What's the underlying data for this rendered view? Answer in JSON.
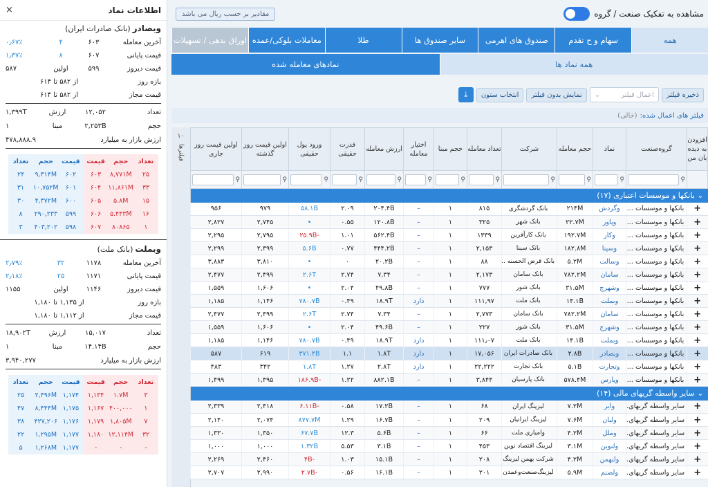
{
  "left_panel": {
    "title": "اطلاعات نماد",
    "close": "×",
    "symbols": [
      {
        "name": "وبصادر",
        "full": "(بانک صادرات ایران)",
        "rows": [
          {
            "label": "آخرین معامله",
            "v1": "۶۰۳",
            "v2": "۴",
            "v3": "۰٫۶۷٪"
          },
          {
            "label": "قیمت پایانی",
            "v1": "۶۰۷",
            "v2": "۸",
            "v3": "۱٫۳۷٪"
          },
          {
            "label": "قیمت دیروز",
            "v1": "۵۹۹",
            "v2": "اولین",
            "v3": "۵۸۷"
          }
        ],
        "ranges": [
          {
            "label": "بازه روز",
            "value": "از ۵۸۲ تا ۶۱۴"
          },
          {
            "label": "قیمت مجاز",
            "value": "از ۵۸۲ تا ۶۱۴"
          }
        ],
        "stats": [
          {
            "label": "تعداد",
            "v1": "۱۲,۰۵۲",
            "v2": "ارزش",
            "v3": "۱,۳۹۹T"
          },
          {
            "label": "حجم",
            "v1": "۲,۲۵۳B",
            "v2": "مبنا",
            "v3": "۱"
          }
        ],
        "mcap": {
          "label": "ارزش بازار به میلیارد",
          "value": "۴۷۸,۸۸۸.۹"
        },
        "orderbook": {
          "buy_headers": [
            "تعداد",
            "حجم",
            "قیمت"
          ],
          "sell_headers": [
            "قیمت",
            "حجم",
            "تعداد"
          ],
          "buy": [
            [
              "۲۴",
              "۹,۳۱۴M",
              "۶۰۲"
            ],
            [
              "۳۱",
              "۱۰,۷۵۲M",
              "۶۰۱"
            ],
            [
              "۳۰",
              "۴,۳۷۲M",
              "۶۰۰"
            ],
            [
              "۸",
              "۲۹۰,۲۳۳",
              "۵۹۹"
            ],
            [
              "۳",
              "۴۰۳,۲۰۲",
              "۵۹۸"
            ]
          ],
          "sell": [
            [
              "۶۰۳",
              "۸,۷۷۱M",
              "۲۵"
            ],
            [
              "۶۰۴",
              "۱۱,۸۶۱M",
              "۳۳"
            ],
            [
              "۶۰۵",
              "۵.۸M",
              "۱۵"
            ],
            [
              "۶۰۶",
              "۵.۴۴۳M",
              "۱۶"
            ],
            [
              "۶۰۷",
              "۸۰۸۶۵",
              "۱"
            ]
          ]
        }
      },
      {
        "name": "وبملت",
        "full": "(بانک ملت)",
        "rows": [
          {
            "label": "آخرین معامله",
            "v1": "۱۱۷۸",
            "v2": "۳۲",
            "v3": "۲٫۷۹٪"
          },
          {
            "label": "قیمت پایانی",
            "v1": "۱۱۷۱",
            "v2": "۲۵",
            "v3": "۲٫۱۸٪"
          },
          {
            "label": "قیمت دیروز",
            "v1": "۱۱۴۶",
            "v2": "اولین",
            "v3": "۱۱۵۵"
          }
        ],
        "ranges": [
          {
            "label": "بازه روز",
            "value": "از ۱,۱۳۵ تا ۱,۱۸۰"
          },
          {
            "label": "قیمت مجاز",
            "value": "از ۱,۱۱۲ تا ۱,۱۸۰"
          }
        ],
        "stats": [
          {
            "label": "تعداد",
            "v1": "۱۵,۰۱۷",
            "v2": "ارزش",
            "v3": "۱۸,۹۰۲T"
          },
          {
            "label": "حجم",
            "v1": "۱۴.۱۴B",
            "v2": "مبنا",
            "v3": "۱"
          }
        ],
        "mcap": {
          "label": "ارزش بازار به میلیارد",
          "value": "۳,۹۴۰,۲۷۷"
        },
        "orderbook": {
          "buy_headers": [
            "تعداد",
            "حجم",
            "قیمت"
          ],
          "sell_headers": [
            "قیمت",
            "حجم",
            "تعداد"
          ],
          "buy": [
            [
              "۲۵",
              "۲,۴۹۶M",
              "۱,۱۷۴"
            ],
            [
              "۴۷",
              "۸,۴۴۴M",
              "۱,۱۷۵"
            ],
            [
              "۳۸",
              "۴۲۷,۲۰۶",
              "۱,۱۷۶"
            ],
            [
              "۲۲",
              "۱,۲۹۵M",
              "۱,۱۷۷"
            ],
            [
              "۵",
              "۱,۲۶۸M",
              "۱,۱۷۷"
            ]
          ],
          "sell": [
            [
              "۱,۱۳۴",
              "۱.۷M",
              "۳"
            ],
            [
              "۱,۱۶۷",
              "۴۰۰,۰۰۰",
              "۱"
            ],
            [
              "۱,۱۷۹",
              "۱,۸۰۵M",
              "۷"
            ],
            [
              "۱,۱۸۰",
              "۱۲,۱۱۴M",
              "۳۲"
            ],
            [
              "-",
              "-",
              "-"
            ]
          ]
        }
      }
    ]
  },
  "main": {
    "group_toggle_label": "مشاهده به تفکیک صنعت / گروه",
    "rial_button": "مقادیر بر حسب ریال می باشد",
    "tabs": [
      "همه",
      "سهام و ح تقدم",
      "صندوق های اهرمی",
      "سایر صندوق ها",
      "طلا",
      "معاملات بلوکی/عمده",
      "اوراق بدهی / تسهیلات"
    ],
    "subtabs": [
      "همه نماد ها",
      "نمادهای معامله شده"
    ],
    "filter": {
      "save": "ذخیره فیلتر",
      "apply_placeholder": "اعمال فیلتر",
      "show_without": "نمایش بدون فیلتر",
      "choose_cols": "انتخاب ستون",
      "applied_label": "فیلتر های اعمال شده:",
      "applied_value": "(خالی)"
    },
    "vertical_label": "فیلترها",
    "vertical_count": "۱۰",
    "headers": [
      "افزودن به دیده بان من",
      "گروه‌صنعت",
      "نماد",
      "حجم معامله",
      "شرکت",
      "تعداد معامله",
      "حجم مبنا",
      "اختیار معامله",
      "ارزش معامله",
      "قدرت حقیقی",
      "ورود پول حقیقی",
      "اولین قیمت روز گذشته",
      "اولین قیمت روز جاری"
    ],
    "groups": [
      {
        "title": "بانکها و موسسات اعتباری (۱۷)",
        "rows": [
          {
            "ind": "بانکها و موسسات ...",
            "sym": "وگردش",
            "vol": "۲۱۴M",
            "co": "بانک گردشگری",
            "cnt": "۸۱۵",
            "base": "۱",
            "opt": "–",
            "val": "۲۰۴.۴B",
            "pow": "۲.۰۹",
            "in": "۵۸.۱B",
            "in_c": "blue",
            "p1": "۹۷۹",
            "p2": "۹۵۶"
          },
          {
            "ind": "بانکها و موسسات ...",
            "sym": "وپاور",
            "vol": "۲۲.۷M",
            "co": "بانک شهر",
            "cnt": "۳۲۵",
            "base": "۱",
            "opt": "–",
            "val": "۱۲۰.۸B",
            "pow": "۰.۵۵",
            "in": "•",
            "in_c": "blue",
            "p1": "۲,۷۴۵",
            "p2": "۲,۸۲۷"
          },
          {
            "ind": "بانکها و موسسات ...",
            "sym": "وکار",
            "vol": "۱۹۲.۷M",
            "co": "بانک کارآفرین",
            "cnt": "۱۳۳۹",
            "base": "۱",
            "opt": "–",
            "val": "۵۶۲.۴B",
            "pow": "۱.۰۱",
            "in": "-۲۵.۹B",
            "in_c": "red",
            "p1": "۲,۷۹۵",
            "p2": "۲,۲۹۵"
          },
          {
            "ind": "بانکها و موسسات ...",
            "sym": "وسینا",
            "vol": "۱۸۲.۸M",
            "co": "بانک سینا",
            "cnt": "۲,۱۵۳",
            "base": "۱",
            "opt": "–",
            "val": "۴۴۴.۲B",
            "pow": "۰.۷۷",
            "in": "۵.۶B",
            "in_c": "blue",
            "p1": "۲,۳۹۹",
            "p2": "۲,۲۹۹"
          },
          {
            "ind": "بانکها و موسسات ...",
            "sym": "وسالت",
            "vol": "۵.۲M",
            "co": "بانک قرض الحسنه ...",
            "cnt": "۸۸",
            "base": "۱",
            "opt": "–",
            "val": "۲۰.۲B",
            "pow": "۰",
            "in": "•",
            "in_c": "blue",
            "p1": "۳,۸۱۰",
            "p2": "۳,۸۸۳"
          },
          {
            "ind": "بانکها و موسسات ...",
            "sym": "سامان",
            "vol": "۷۸۲.۲M",
            "co": "بانک سامان",
            "cnt": "۲,۱۷۳",
            "base": "۱",
            "opt": "–",
            "val": "۷.۳۴",
            "pow": "۲.۷۴",
            "in": "۲.۶T",
            "in_c": "blue",
            "p1": "۲,۴۹۹",
            "p2": "۲,۴۷۷"
          },
          {
            "ind": "بانکها و موسسات ...",
            "sym": "وشهرج",
            "vol": "۳۱.۵M",
            "co": "بانک شور",
            "cnt": "۷۷۷",
            "base": "۱",
            "opt": "–",
            "val": "۴۹.۸B",
            "pow": "۲.۰۴",
            "in": "•",
            "in_c": "blue",
            "p1": "۱,۶۰۶",
            "p2": "۱,۵۵۹"
          },
          {
            "ind": "بانکها و موسسات ...",
            "sym": "وبملت",
            "vol": "۱۴.۱B",
            "co": "بانک ملت",
            "cnt": "۱۱۱,۹۷",
            "base": "۱",
            "opt": "دارد",
            "val": "۱۸.۹T",
            "pow": "۰.۴۹",
            "in": "۷۸۰.۷B",
            "in_c": "blue",
            "p1": "۱,۱۴۶",
            "p2": "۱,۱۸۵"
          },
          {
            "ind": "بانکها و موسسات ...",
            "sym": "سامان",
            "vol": "۷۸۲.۲M",
            "co": "بانک سامان",
            "cnt": "۲,۷۷۳",
            "base": "۱",
            "opt": "–",
            "val": "۷.۳۴",
            "pow": "۲.۷۴",
            "in": "۲.۶T",
            "in_c": "blue",
            "p1": "۲,۴۹۹",
            "p2": "۲,۴۷۷"
          },
          {
            "ind": "بانکها و موسسات ...",
            "sym": "وشهرج",
            "vol": "۳۱.۵M",
            "co": "بانک شور",
            "cnt": "۲۲۷",
            "base": "۱",
            "opt": "–",
            "val": "۴۹.۶B",
            "pow": "۲.۰۴",
            "in": "•",
            "in_c": "blue",
            "p1": "۱,۶۰۶",
            "p2": "۱,۵۵۹"
          },
          {
            "ind": "بانکها و موسسات ...",
            "sym": "وبملت",
            "vol": "۱۴.۱B",
            "co": "بانک ملت",
            "cnt": "۱۱۱٫۰۷",
            "base": "۱",
            "opt": "دارد",
            "val": "۱۸.۹T",
            "pow": "۰.۴۹",
            "in": "۷۸۰.۷B",
            "in_c": "blue",
            "p1": "۱,۱۴۶",
            "p2": "۱,۱۸۵"
          },
          {
            "ind": "بانکها و موسسات ...",
            "sym": "وبصادر",
            "vol": "۲.۸B",
            "co": "بانک صادرات ایران",
            "cnt": "۱۷,۰۵۶",
            "base": "۱",
            "opt": "دارد",
            "val": "۱.۸T",
            "pow": "۱.۱",
            "in": "۳۷۱.۴B",
            "in_c": "blue",
            "p1": "۶۱۹",
            "p2": "۵۸۷",
            "hl": true
          },
          {
            "ind": "بانکها و موسسات ...",
            "sym": "وتجارت",
            "vol": "۵.۱B",
            "co": "بانک تجارت",
            "cnt": "۲۲,۲۲۲",
            "base": "۱",
            "opt": "دارد",
            "val": "۲.۸T",
            "pow": "۱.۲۷",
            "in": "۱.۸T",
            "in_c": "blue",
            "p1": "۳۴۲",
            "p2": "۴۸۳"
          },
          {
            "ind": "بانکها و موسسات ...",
            "sym": "وپارس",
            "vol": "۵۷۸.۴M",
            "co": "بانک پارسیان",
            "cnt": "۳,۸۴۴",
            "base": "۱",
            "opt": "–",
            "val": "۸۸۲.۱B",
            "pow": "۱.۲۲",
            "in": "-۱۸۶.۹B",
            "in_c": "red",
            "p1": "۱,۴۹۵",
            "p2": "۱,۴۹۹"
          }
        ]
      },
      {
        "title": "سایر واسطه گریهای مالی (۱۴)",
        "rows": [
          {
            "ind": "سایر واسطه گریهای...",
            "sym": "وایر",
            "vol": "۷.۲M",
            "co": "لیزینگ ایران",
            "cnt": "۶۸",
            "base": "۱",
            "opt": "–",
            "val": "۱۷.۲B",
            "pow": "۰.۵۸",
            "in": "-۶.۱۱B",
            "in_c": "red",
            "p1": "۲,۴۱۸",
            "p2": "۲,۳۳۹"
          },
          {
            "ind": "سایر واسطه گریهای...",
            "sym": "ولیان",
            "vol": "۷.۶M",
            "co": "لیزینگ ایرانیان",
            "cnt": "۲۰۹",
            "base": "۱",
            "opt": "–",
            "val": "۱۶.۷B",
            "pow": "۱.۲۹",
            "in": "۸۷۷.۷M",
            "in_c": "blue",
            "p1": "۲,۰۷۴",
            "p2": "۲,۱۴۰"
          },
          {
            "ind": "سایر واسطه گریهای...",
            "sym": "وملل",
            "vol": "۴.۲M",
            "co": "وامیاری ملت",
            "cnt": "۶۶",
            "base": "۱",
            "opt": "–",
            "val": "۵.۶B",
            "pow": "۱۲.۳",
            "in": "۶۷.۷B",
            "in_c": "blue",
            "p1": "۱,۳۵۰",
            "p2": "۱,۳۳۰"
          },
          {
            "ind": "سایر واسطه گریهای...",
            "sym": "ولنوین",
            "vol": "۳.۱M",
            "co": "لیزینگ اقتصاد نوین",
            "cnt": "۴۵۳",
            "base": "۱",
            "opt": "–",
            "val": "۳.۱B",
            "pow": "۵.۵۳",
            "in": "۱.۳۲B",
            "in_c": "blue",
            "p1": "۱,۰۰۰",
            "p2": "۱,۰۰۰"
          },
          {
            "ind": "سایر واسطه گریهای...",
            "sym": "ولبهمن",
            "vol": "۴.۲M",
            "co": "شرکت بهمن لیزینگ",
            "cnt": "۲۰۸",
            "base": "۱",
            "opt": "–",
            "val": "۱۵.۱B",
            "pow": "۱.۰۳",
            "in": "-۴B",
            "in_c": "red",
            "p1": "۲,۴۶۰",
            "p2": "۲,۲۶۹"
          },
          {
            "ind": "سایر واسطه گریهای...",
            "sym": "ولصنم",
            "vol": "۵.۹M",
            "co": "لیزینگ‌صنعت‌وعمدن",
            "cnt": "۲۰۱",
            "base": "۱",
            "opt": "–",
            "val": "۱۶.۱B",
            "pow": "۰.۵۶",
            "in": "-۲.۷B",
            "in_c": "red",
            "p1": "۲,۹۹۰",
            "p2": "۲,۷۰۷"
          }
        ]
      }
    ]
  }
}
